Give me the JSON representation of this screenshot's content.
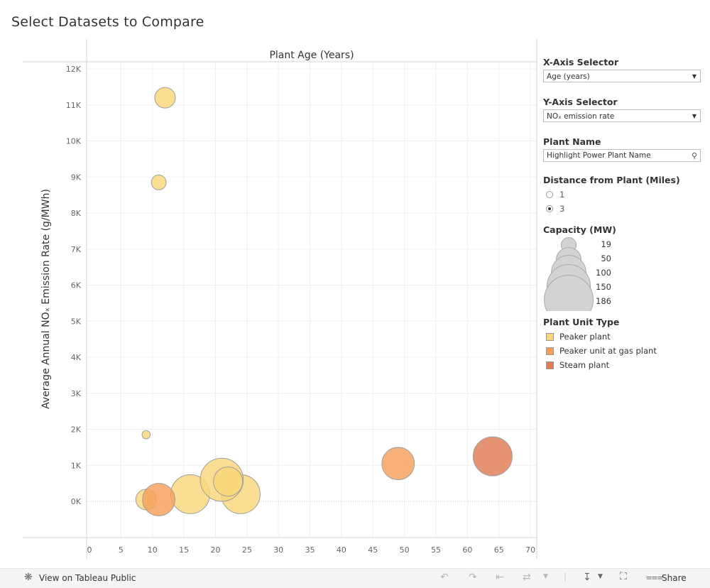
{
  "title": "Select Datasets to Compare",
  "colors": {
    "peaker": "#f9d77a",
    "peaker_gas": "#f5a05a",
    "steam": "#e07b56",
    "capacity_legend": "#d3d3d3"
  },
  "controls": {
    "x_axis": {
      "title": "X-Axis Selector",
      "value": "Age (years)"
    },
    "y_axis": {
      "title": "Y-Axis Selector",
      "value": "NOₓ emission rate"
    },
    "plant_name": {
      "title": "Plant Name",
      "placeholder": "Highlight Power Plant Name"
    },
    "distance": {
      "title": "Distance from Plant (Miles)",
      "options": [
        "1",
        "3"
      ],
      "selected": "3"
    }
  },
  "capacity_legend": {
    "title": "Capacity (MW)",
    "values": [
      "19",
      "50",
      "100",
      "150",
      "186"
    ]
  },
  "type_legend": {
    "title": "Plant Unit Type",
    "items": [
      "Peaker plant",
      "Peaker unit at gas plant",
      "Steam plant"
    ]
  },
  "chart_data": {
    "type": "scatter",
    "title": "",
    "xlabel": "Plant Age (Years)",
    "ylabel": "Average Annual NOₓ Emission Rate (g/MWh)",
    "xlim": [
      0,
      71
    ],
    "ylim": [
      -1000,
      12200
    ],
    "x_ticks": [
      0,
      5,
      10,
      15,
      20,
      25,
      30,
      35,
      40,
      45,
      50,
      55,
      60,
      65,
      70
    ],
    "x_tick_labels": [
      "0",
      "5",
      "10",
      "15",
      "20",
      "25",
      "30",
      "35",
      "40",
      "45",
      "50",
      "55",
      "60",
      "65",
      "70"
    ],
    "y_ticks": [
      0,
      1000,
      2000,
      3000,
      4000,
      5000,
      6000,
      7000,
      8000,
      9000,
      10000,
      11000,
      12000
    ],
    "y_tick_labels": [
      "0K",
      "1K",
      "2K",
      "3K",
      "4K",
      "5K",
      "6K",
      "7K",
      "8K",
      "9K",
      "10K",
      "11K",
      "12K"
    ],
    "size_encoding": "Capacity (MW)",
    "color_encoding": "Plant Unit Type",
    "grid": true,
    "points": [
      {
        "x": 12,
        "y": 11200,
        "capacity": 40,
        "type": "Peaker plant"
      },
      {
        "x": 11,
        "y": 8850,
        "capacity": 25,
        "type": "Peaker plant"
      },
      {
        "x": 9,
        "y": 1850,
        "capacity": 19,
        "type": "Peaker plant"
      },
      {
        "x": 16,
        "y": 200,
        "capacity": 150,
        "type": "Peaker plant"
      },
      {
        "x": 24,
        "y": 200,
        "capacity": 150,
        "type": "Peaker plant"
      },
      {
        "x": 21,
        "y": 600,
        "capacity": 186,
        "type": "Peaker plant"
      },
      {
        "x": 22,
        "y": 550,
        "capacity": 80,
        "type": "Peaker plant"
      },
      {
        "x": 9,
        "y": 50,
        "capacity": 40,
        "type": "Peaker plant"
      },
      {
        "x": 11,
        "y": 50,
        "capacity": 100,
        "type": "Peaker unit at gas plant"
      },
      {
        "x": 49,
        "y": 1050,
        "capacity": 100,
        "type": "Peaker unit at gas plant"
      },
      {
        "x": 64,
        "y": 1250,
        "capacity": 150,
        "type": "Steam plant"
      }
    ]
  },
  "footer": {
    "view_label": "View on Tableau Public",
    "share_label": "Share"
  }
}
